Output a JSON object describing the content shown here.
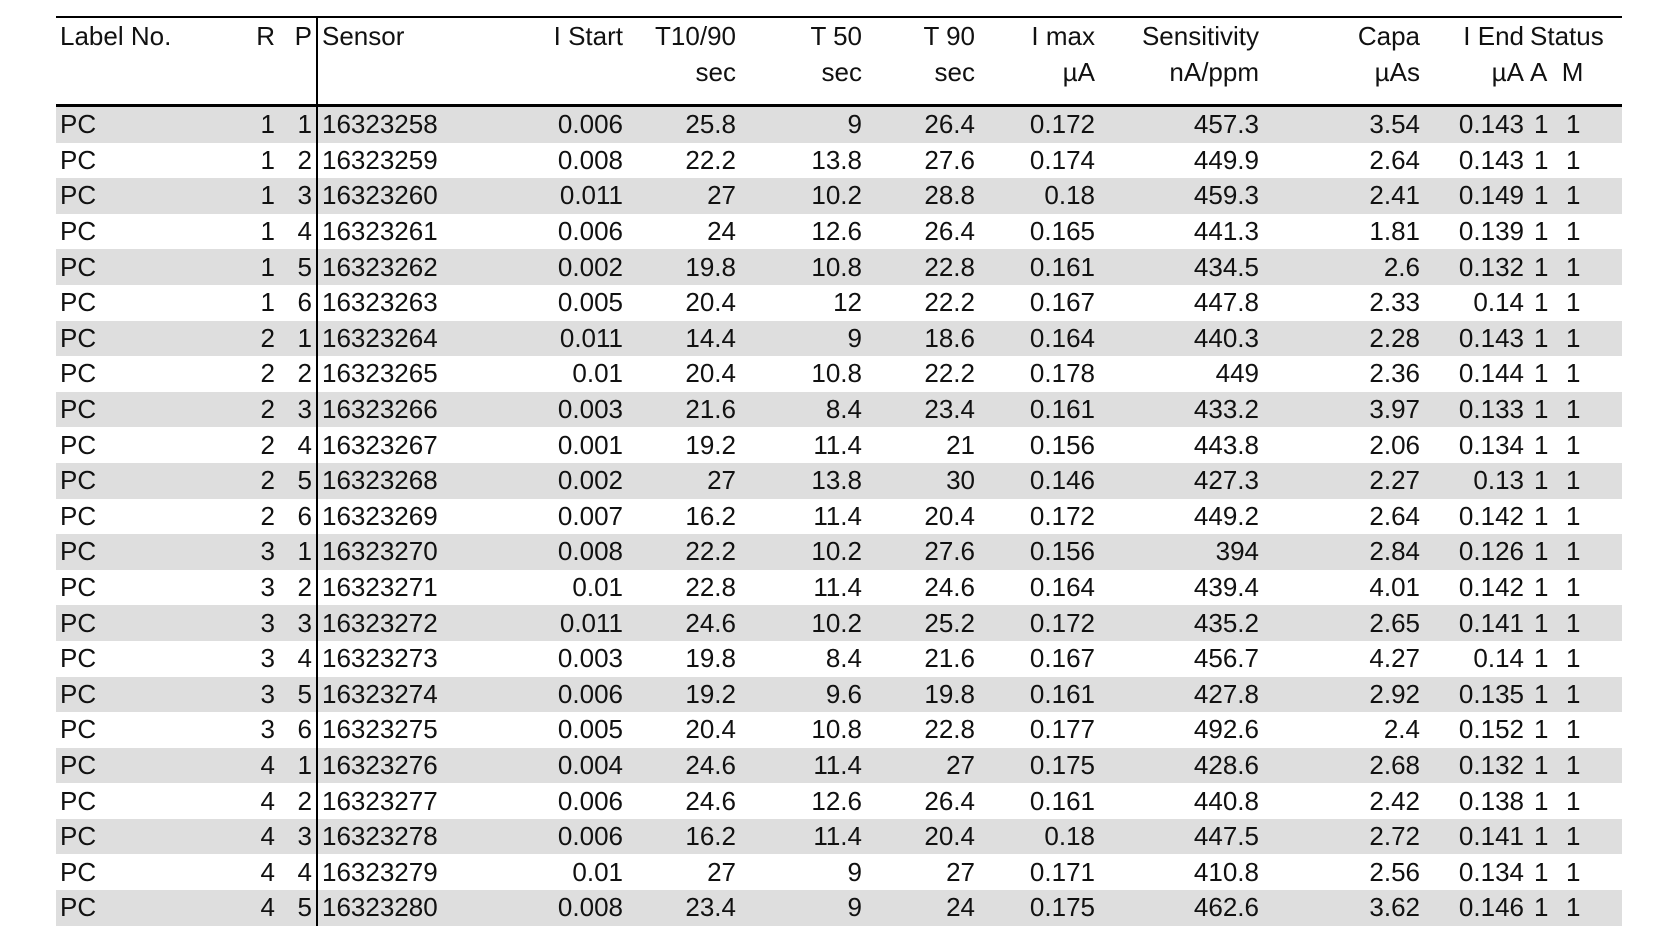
{
  "columns": {
    "label": "Label No.",
    "r": "R",
    "p": "P",
    "sensor": "Sensor",
    "istart": "I Start",
    "t1090": "T10/90",
    "t1090_unit": "sec",
    "t50": "T 50",
    "t50_unit": "sec",
    "t90": "T 90",
    "t90_unit": "sec",
    "imax": "I max",
    "imax_unit": "µA",
    "sensitivity": "Sensitivity",
    "sensitivity_unit": "nA/ppm",
    "capa": "Capa",
    "capa_unit": "µAs",
    "iend": "I End",
    "iend_unit": "µA",
    "status": "Status",
    "status_a": "A",
    "status_m": "M"
  },
  "rows": [
    [
      "PC",
      "1",
      "1",
      "16323258",
      "0.006",
      "25.8",
      "9",
      "26.4",
      "0.172",
      "457.3",
      "3.54",
      "0.143",
      "1",
      "1"
    ],
    [
      "PC",
      "1",
      "2",
      "16323259",
      "0.008",
      "22.2",
      "13.8",
      "27.6",
      "0.174",
      "449.9",
      "2.64",
      "0.143",
      "1",
      "1"
    ],
    [
      "PC",
      "1",
      "3",
      "16323260",
      "0.011",
      "27",
      "10.2",
      "28.8",
      "0.18",
      "459.3",
      "2.41",
      "0.149",
      "1",
      "1"
    ],
    [
      "PC",
      "1",
      "4",
      "16323261",
      "0.006",
      "24",
      "12.6",
      "26.4",
      "0.165",
      "441.3",
      "1.81",
      "0.139",
      "1",
      "1"
    ],
    [
      "PC",
      "1",
      "5",
      "16323262",
      "0.002",
      "19.8",
      "10.8",
      "22.8",
      "0.161",
      "434.5",
      "2.6",
      "0.132",
      "1",
      "1"
    ],
    [
      "PC",
      "1",
      "6",
      "16323263",
      "0.005",
      "20.4",
      "12",
      "22.2",
      "0.167",
      "447.8",
      "2.33",
      "0.14",
      "1",
      "1"
    ],
    [
      "PC",
      "2",
      "1",
      "16323264",
      "0.011",
      "14.4",
      "9",
      "18.6",
      "0.164",
      "440.3",
      "2.28",
      "0.143",
      "1",
      "1"
    ],
    [
      "PC",
      "2",
      "2",
      "16323265",
      "0.01",
      "20.4",
      "10.8",
      "22.2",
      "0.178",
      "449",
      "2.36",
      "0.144",
      "1",
      "1"
    ],
    [
      "PC",
      "2",
      "3",
      "16323266",
      "0.003",
      "21.6",
      "8.4",
      "23.4",
      "0.161",
      "433.2",
      "3.97",
      "0.133",
      "1",
      "1"
    ],
    [
      "PC",
      "2",
      "4",
      "16323267",
      "0.001",
      "19.2",
      "11.4",
      "21",
      "0.156",
      "443.8",
      "2.06",
      "0.134",
      "1",
      "1"
    ],
    [
      "PC",
      "2",
      "5",
      "16323268",
      "0.002",
      "27",
      "13.8",
      "30",
      "0.146",
      "427.3",
      "2.27",
      "0.13",
      "1",
      "1"
    ],
    [
      "PC",
      "2",
      "6",
      "16323269",
      "0.007",
      "16.2",
      "11.4",
      "20.4",
      "0.172",
      "449.2",
      "2.64",
      "0.142",
      "1",
      "1"
    ],
    [
      "PC",
      "3",
      "1",
      "16323270",
      "0.008",
      "22.2",
      "10.2",
      "27.6",
      "0.156",
      "394",
      "2.84",
      "0.126",
      "1",
      "1"
    ],
    [
      "PC",
      "3",
      "2",
      "16323271",
      "0.01",
      "22.8",
      "11.4",
      "24.6",
      "0.164",
      "439.4",
      "4.01",
      "0.142",
      "1",
      "1"
    ],
    [
      "PC",
      "3",
      "3",
      "16323272",
      "0.011",
      "24.6",
      "10.2",
      "25.2",
      "0.172",
      "435.2",
      "2.65",
      "0.141",
      "1",
      "1"
    ],
    [
      "PC",
      "3",
      "4",
      "16323273",
      "0.003",
      "19.8",
      "8.4",
      "21.6",
      "0.167",
      "456.7",
      "4.27",
      "0.14",
      "1",
      "1"
    ],
    [
      "PC",
      "3",
      "5",
      "16323274",
      "0.006",
      "19.2",
      "9.6",
      "19.8",
      "0.161",
      "427.8",
      "2.92",
      "0.135",
      "1",
      "1"
    ],
    [
      "PC",
      "3",
      "6",
      "16323275",
      "0.005",
      "20.4",
      "10.8",
      "22.8",
      "0.177",
      "492.6",
      "2.4",
      "0.152",
      "1",
      "1"
    ],
    [
      "PC",
      "4",
      "1",
      "16323276",
      "0.004",
      "24.6",
      "11.4",
      "27",
      "0.175",
      "428.6",
      "2.68",
      "0.132",
      "1",
      "1"
    ],
    [
      "PC",
      "4",
      "2",
      "16323277",
      "0.006",
      "24.6",
      "12.6",
      "26.4",
      "0.161",
      "440.8",
      "2.42",
      "0.138",
      "1",
      "1"
    ],
    [
      "PC",
      "4",
      "3",
      "16323278",
      "0.006",
      "16.2",
      "11.4",
      "20.4",
      "0.18",
      "447.5",
      "2.72",
      "0.141",
      "1",
      "1"
    ],
    [
      "PC",
      "4",
      "4",
      "16323279",
      "0.01",
      "27",
      "9",
      "27",
      "0.171",
      "410.8",
      "2.56",
      "0.134",
      "1",
      "1"
    ],
    [
      "PC",
      "4",
      "5",
      "16323280",
      "0.008",
      "23.4",
      "9",
      "24",
      "0.175",
      "462.6",
      "3.62",
      "0.146",
      "1",
      "1"
    ]
  ]
}
